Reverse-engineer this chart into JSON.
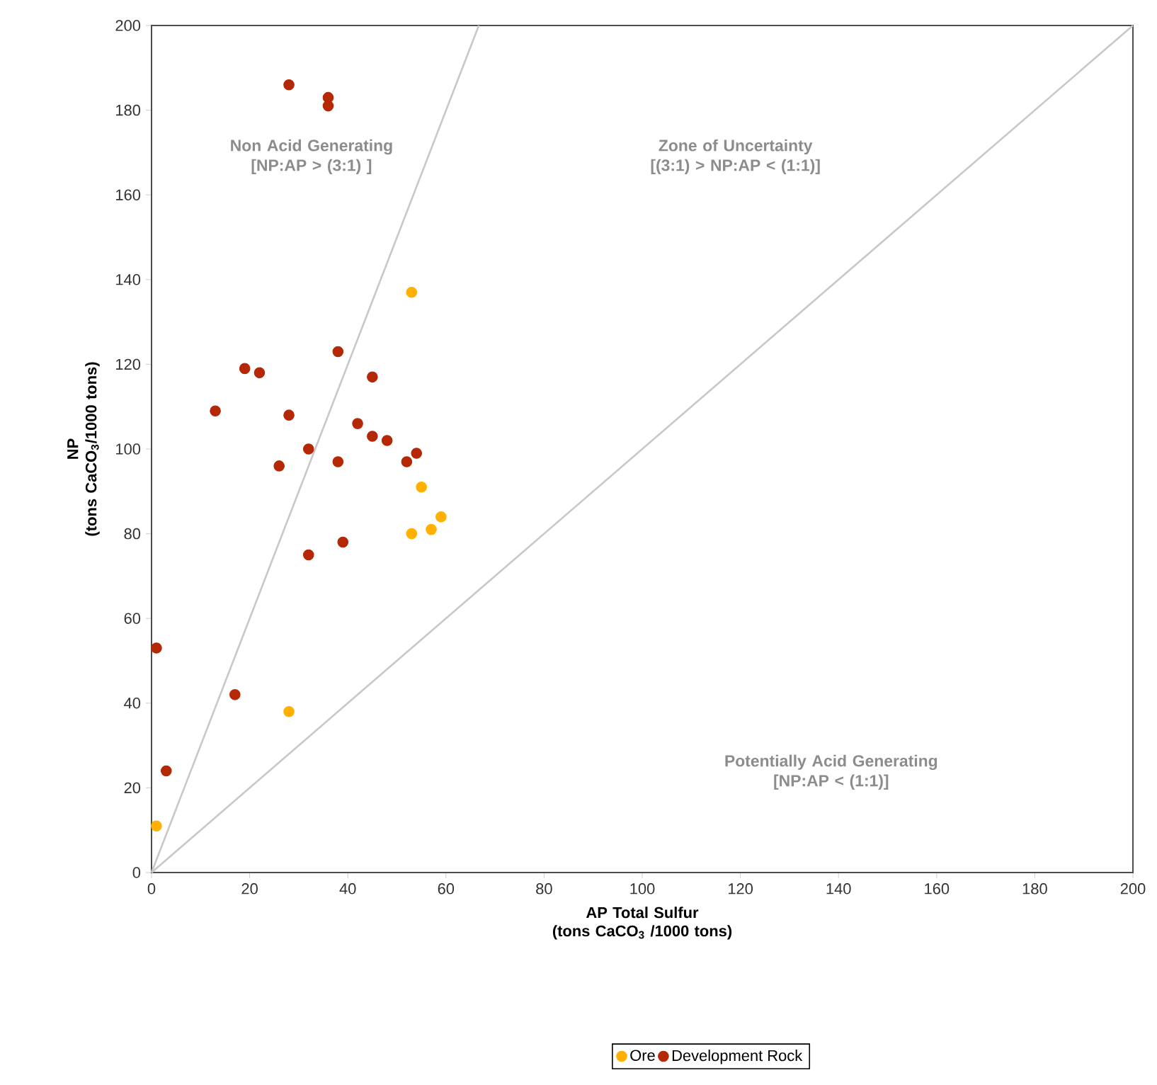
{
  "chart_data": {
    "type": "scatter",
    "xlabel": "AP Total Sulfur\n(tons CaCO$_{3}$ /1000 tons)",
    "ylabel": "NP\n(tons CaCO$_{3}$/1000 tons)",
    "xlim": [
      0,
      200
    ],
    "ylim": [
      0,
      200
    ],
    "xticks": [
      0,
      20,
      40,
      60,
      80,
      100,
      120,
      140,
      160,
      180,
      200
    ],
    "yticks": [
      0,
      20,
      40,
      60,
      80,
      100,
      120,
      140,
      160,
      180,
      200
    ],
    "grid": false,
    "legend": "bottom",
    "annotations": [
      "Non Acid Generating\n[NP:AP > (3:1) ]",
      "Zone of Uncertainty\n[(3:1) > NP:AP < (1:1)]",
      "Potentially Acid Generating\n[NP:AP < (1:1)]"
    ],
    "series": [
      {
        "name": "Ore",
        "color": "#ffb000",
        "marker": "circle",
        "x": [
          53,
          55,
          59,
          57,
          53,
          28,
          1
        ],
        "values": [
          137,
          91,
          84,
          81,
          80,
          38,
          11
        ]
      },
      {
        "name": "Development Rock",
        "color": "#b42806",
        "marker": "circle",
        "x": [
          28,
          36,
          36,
          38,
          45,
          19,
          22,
          13,
          28,
          42,
          45,
          48,
          32,
          54,
          52,
          38,
          26,
          39,
          32,
          1,
          17,
          3
        ],
        "values": [
          186,
          183,
          181,
          123,
          117,
          119,
          118,
          109,
          108,
          106,
          103,
          102,
          100,
          99,
          97,
          97,
          96,
          78,
          75,
          53,
          42,
          24
        ]
      },
      {
        "type": "line",
        "marker": "none",
        "color": "#c8c8c8",
        "x": [
          0,
          66.7
        ],
        "values": [
          0,
          200
        ]
      },
      {
        "type": "line",
        "marker": "none",
        "color": "#c8c8c8",
        "x": [
          0,
          200
        ],
        "values": [
          0,
          200
        ]
      }
    ]
  }
}
